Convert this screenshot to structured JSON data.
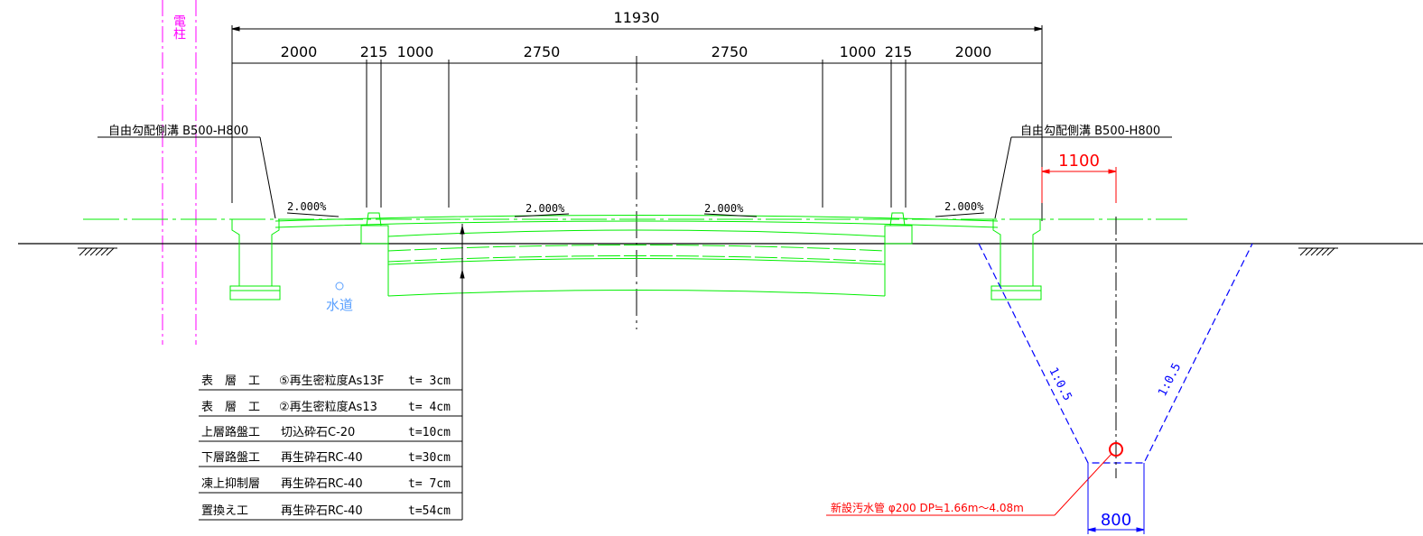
{
  "dimensions": {
    "overall": "11930",
    "segments": [
      "2000",
      "215",
      "1000",
      "2750",
      "2750",
      "1000",
      "215",
      "2000"
    ],
    "offset_red": "1100",
    "trench_bottom": "800"
  },
  "labels": {
    "utility_pole": "電柱",
    "gutter_left": "自由勾配側溝 B500-H800",
    "gutter_right": "自由勾配側溝 B500-H800",
    "water_main": "水道",
    "sewer_pipe": "新設汚水管 φ200 DP≒1.66m～4.08m"
  },
  "slopes": [
    "2.000%",
    "2.000%",
    "2.000%",
    "2.000%"
  ],
  "trench_slopes": [
    "1:0.5",
    "1:0.5"
  ],
  "pavement_layers": [
    {
      "name": "表　層　工",
      "material": "⑤再生密粒度As13F",
      "thickness": "t= 3cm"
    },
    {
      "name": "表　層　工",
      "material": "②再生密粒度As13",
      "thickness": "t= 4cm"
    },
    {
      "name": "上層路盤工",
      "material": "切込砕石C-20",
      "thickness": "t=10cm"
    },
    {
      "name": "下層路盤工",
      "material": "再生砕石RC-40",
      "thickness": "t=30cm"
    },
    {
      "name": "凍上抑制層",
      "material": "再生砕石RC-40",
      "thickness": "t= 7cm"
    },
    {
      "name": "置換え工",
      "material": "再生砕石RC-40",
      "thickness": "t=54cm"
    }
  ],
  "colors": {
    "dimension": "#000000",
    "structure": "#00ff00",
    "pole": "#ff00ff",
    "trench": "#0000ff",
    "red": "#ff0000",
    "water": "#5aa0ff"
  }
}
